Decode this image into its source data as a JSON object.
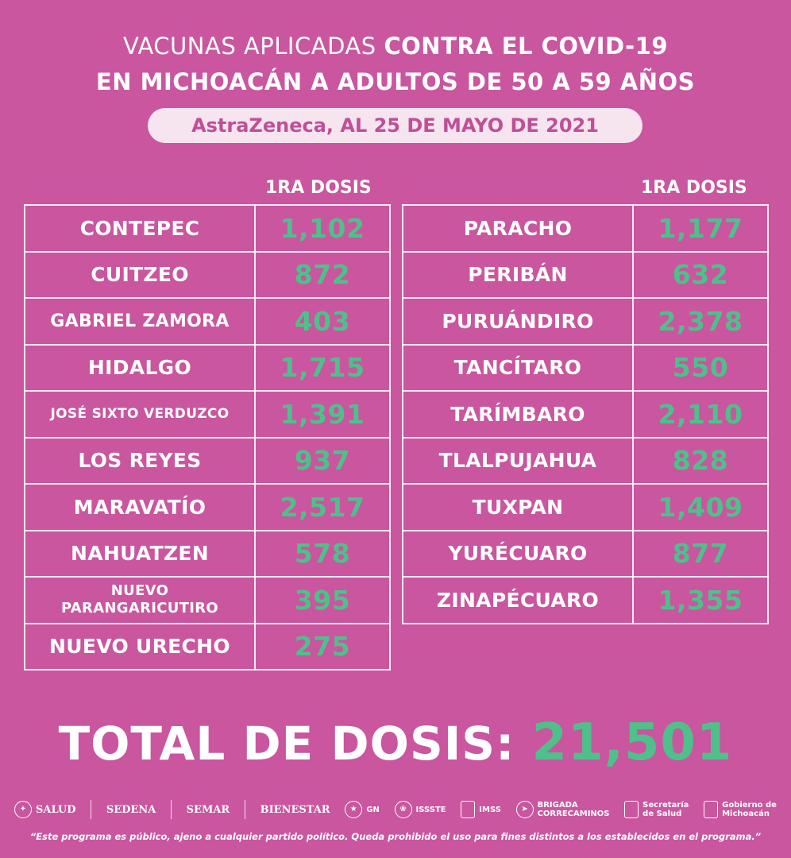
{
  "title": {
    "line1_a": "VACUNAS APLICADAS ",
    "line1_b": "CONTRA EL COVID-19",
    "line2": "EN MICHOACÁN A ADULTOS DE 50 A 59 AÑOS"
  },
  "subtitle": "AstraZeneca, AL 25 DE MAYO DE 2021",
  "column_header": "1RA DOSIS",
  "left_table": [
    {
      "municipio": "CONTEPEC",
      "dosis": "1,102"
    },
    {
      "municipio": "CUITZEO",
      "dosis": "872"
    },
    {
      "municipio": "GABRIEL ZAMORA",
      "dosis": "403"
    },
    {
      "municipio": "HIDALGO",
      "dosis": "1,715"
    },
    {
      "municipio": "JOSÉ SIXTO VERDUZCO",
      "dosis": "1,391"
    },
    {
      "municipio": "LOS REYES",
      "dosis": "937"
    },
    {
      "municipio": "MARAVATÍO",
      "dosis": "2,517"
    },
    {
      "municipio": "NAHUATZEN",
      "dosis": "578"
    },
    {
      "municipio_line1": "NUEVO",
      "municipio_line2": "PARANGARICUTIRO",
      "dosis": "395"
    },
    {
      "municipio": "NUEVO URECHO",
      "dosis": "275"
    }
  ],
  "right_table": [
    {
      "municipio": "PARACHO",
      "dosis": "1,177"
    },
    {
      "municipio": "PERIBÁN",
      "dosis": "632"
    },
    {
      "municipio": "PURUÁNDIRO",
      "dosis": "2,378"
    },
    {
      "municipio": "TANCÍTARO",
      "dosis": "550"
    },
    {
      "municipio": "TARÍMBARO",
      "dosis": "2,110"
    },
    {
      "municipio": "TLALPUJAHUA",
      "dosis": "828"
    },
    {
      "municipio": "TUXPAN",
      "dosis": "1,409"
    },
    {
      "municipio": "YURÉCUARO",
      "dosis": "877"
    },
    {
      "municipio": "ZINAPÉCUARO",
      "dosis": "1,355"
    }
  ],
  "total": {
    "label": "TOTAL DE DOSIS: ",
    "value": "21,501"
  },
  "logos": {
    "salud": "SALUD",
    "sedena": "SEDENA",
    "semar": "SEMAR",
    "bienestar": "BIENESTAR",
    "gn": "GN",
    "issste": "ISSSTE",
    "imss": "IMSS",
    "brigada_1": "BRIGADA",
    "brigada_2": "CORRECAMINOS",
    "secretaria_1": "Secretaría",
    "secretaria_2": "de Salud",
    "gobierno_1": "Gobierno de",
    "gobierno_2": "Michoacán"
  },
  "disclaimer": "“Este programa es público, ajeno a cualquier partido político. Queda prohibido el uso para fines distintos a los establecidos en el programa.”",
  "colors": {
    "background": "#c9569f",
    "accent_green": "#4fc08a",
    "pill_bg": "#f6e4ef",
    "pill_text": "#c04f97"
  }
}
